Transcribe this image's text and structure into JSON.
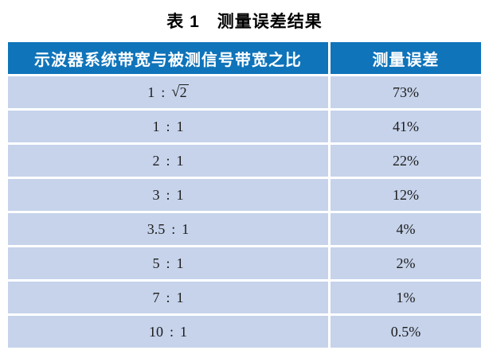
{
  "caption": "表 1　测量误差结果",
  "colors": {
    "header_bg": "#0f74ba",
    "header_fg": "#ffffff",
    "row_bg": "#c6d3eb",
    "body_fg": "#1c1c1c",
    "divider": "#ffffff",
    "page_bg": "#ffffff",
    "title_fg": "#000000"
  },
  "table": {
    "columns": [
      "示波器系统带宽与被测信号带宽之比",
      "测量误差"
    ],
    "separator": ":",
    "radical_symbol": "√",
    "rows": [
      {
        "lhs": "1",
        "rhs": "2",
        "radical": true,
        "error": "73%"
      },
      {
        "lhs": "1",
        "rhs": "1",
        "radical": false,
        "error": "41%"
      },
      {
        "lhs": "2",
        "rhs": "1",
        "radical": false,
        "error": "22%"
      },
      {
        "lhs": "3",
        "rhs": "1",
        "radical": false,
        "error": "12%"
      },
      {
        "lhs": "3.5",
        "rhs": "1",
        "radical": false,
        "error": "4%"
      },
      {
        "lhs": "5",
        "rhs": "1",
        "radical": false,
        "error": "2%"
      },
      {
        "lhs": "7",
        "rhs": "1",
        "radical": false,
        "error": "1%"
      },
      {
        "lhs": "10",
        "rhs": "1",
        "radical": false,
        "error": "0.5%"
      }
    ]
  },
  "chart_data": {
    "type": "table",
    "title": "表 1　测量误差结果",
    "columns": [
      "示波器系统带宽与被测信号带宽之比",
      "测量误差"
    ],
    "rows": [
      [
        "1 : √2",
        "73%"
      ],
      [
        "1 : 1",
        "41%"
      ],
      [
        "2 : 1",
        "22%"
      ],
      [
        "3 : 1",
        "12%"
      ],
      [
        "3.5 : 1",
        "4%"
      ],
      [
        "5 : 1",
        "2%"
      ],
      [
        "7 : 1",
        "1%"
      ],
      [
        "10 : 1",
        "0.5%"
      ]
    ]
  }
}
